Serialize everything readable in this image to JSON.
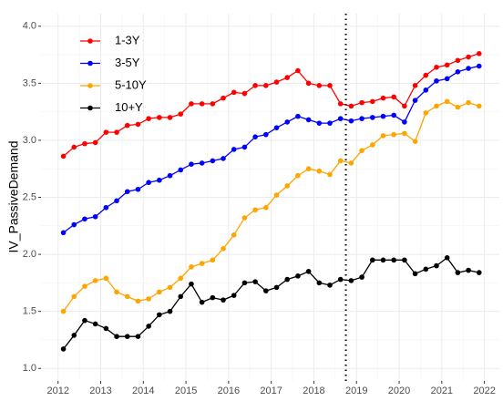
{
  "chart_data": {
    "type": "line",
    "y_label": "IV_PassiveDemand",
    "x": [
      2012.125,
      2012.375,
      2012.625,
      2012.875,
      2013.125,
      2013.375,
      2013.625,
      2013.875,
      2014.125,
      2014.375,
      2014.625,
      2014.875,
      2015.125,
      2015.375,
      2015.625,
      2015.875,
      2016.125,
      2016.375,
      2016.625,
      2016.875,
      2017.125,
      2017.375,
      2017.625,
      2017.875,
      2018.125,
      2018.375,
      2018.625,
      2018.875,
      2019.125,
      2019.375,
      2019.625,
      2019.875,
      2020.125,
      2020.375,
      2020.625,
      2020.875,
      2021.125,
      2021.375,
      2021.625,
      2021.875
    ],
    "series": [
      {
        "name": "1-3Y",
        "color": "#ff0000",
        "values": [
          2.86,
          2.94,
          2.97,
          2.98,
          3.07,
          3.07,
          3.13,
          3.14,
          3.19,
          3.2,
          3.2,
          3.23,
          3.32,
          3.32,
          3.32,
          3.37,
          3.42,
          3.41,
          3.48,
          3.48,
          3.51,
          3.55,
          3.61,
          3.5,
          3.48,
          3.48,
          3.32,
          3.3,
          3.33,
          3.34,
          3.37,
          3.38,
          3.3,
          3.48,
          3.57,
          3.64,
          3.66,
          3.7,
          3.73,
          3.76
        ]
      },
      {
        "name": "3-5Y",
        "color": "#0000ff",
        "values": [
          2.19,
          2.26,
          2.31,
          2.33,
          2.41,
          2.47,
          2.55,
          2.57,
          2.63,
          2.65,
          2.69,
          2.74,
          2.79,
          2.8,
          2.82,
          2.84,
          2.92,
          2.94,
          3.03,
          3.05,
          3.11,
          3.16,
          3.21,
          3.18,
          3.15,
          3.15,
          3.19,
          3.17,
          3.19,
          3.2,
          3.21,
          3.22,
          3.16,
          3.35,
          3.44,
          3.52,
          3.54,
          3.6,
          3.63,
          3.65
        ]
      },
      {
        "name": "5-10Y",
        "color": "#ffa500",
        "values": [
          1.5,
          1.63,
          1.72,
          1.77,
          1.79,
          1.67,
          1.63,
          1.59,
          1.61,
          1.67,
          1.71,
          1.79,
          1.89,
          1.92,
          1.95,
          2.05,
          2.17,
          2.32,
          2.39,
          2.41,
          2.52,
          2.6,
          2.69,
          2.75,
          2.73,
          2.7,
          2.82,
          2.8,
          2.91,
          2.96,
          3.04,
          3.05,
          3.06,
          2.99,
          3.24,
          3.3,
          3.34,
          3.29,
          3.33,
          3.3
        ]
      },
      {
        "name": "10+Y",
        "color": "#000000",
        "values": [
          1.17,
          1.29,
          1.42,
          1.39,
          1.35,
          1.28,
          1.28,
          1.28,
          1.37,
          1.47,
          1.5,
          1.63,
          1.74,
          1.58,
          1.62,
          1.6,
          1.64,
          1.75,
          1.76,
          1.68,
          1.71,
          1.78,
          1.81,
          1.85,
          1.75,
          1.73,
          1.78,
          1.77,
          1.8,
          1.95,
          1.95,
          1.95,
          1.95,
          1.83,
          1.87,
          1.9,
          1.97,
          1.84,
          1.86,
          1.84
        ]
      }
    ],
    "xlim": [
      2011.6,
      2022.35
    ],
    "xticks": [
      2012,
      2013,
      2014,
      2015,
      2016,
      2017,
      2018,
      2019,
      2020,
      2021,
      2022
    ],
    "ylim": [
      0.89,
      4.11
    ],
    "yticks": [
      {
        "value": 1,
        "label": "1.0"
      },
      1.5,
      {
        "value": 2,
        "label": "2.0"
      },
      2.5,
      {
        "value": 3,
        "label": "3.0"
      },
      3.5,
      {
        "value": 4,
        "label": "4.0"
      }
    ],
    "vline": 2018.75,
    "grid": true,
    "legend": "top-left"
  }
}
